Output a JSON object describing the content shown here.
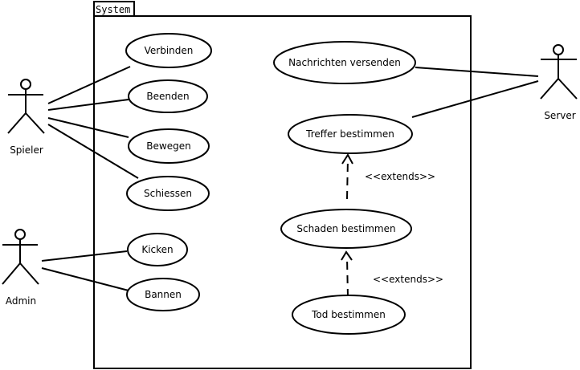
{
  "system": {
    "label": "System"
  },
  "actors": {
    "spieler": "Spieler",
    "admin": "Admin",
    "server": "Server"
  },
  "use_cases": {
    "verbinden": "Verbinden",
    "beenden": "Beenden",
    "bewegen": "Bewegen",
    "schiessen": "Schiessen",
    "kicken": "Kicken",
    "bannen": "Bannen",
    "nachrichten": "Nachrichten versenden",
    "treffer": "Treffer bestimmen",
    "schaden": "Schaden bestimmen",
    "tod": "Tod bestimmen"
  },
  "relations": {
    "extends_1": "<<extends>>",
    "extends_2": "<<extends>>"
  }
}
